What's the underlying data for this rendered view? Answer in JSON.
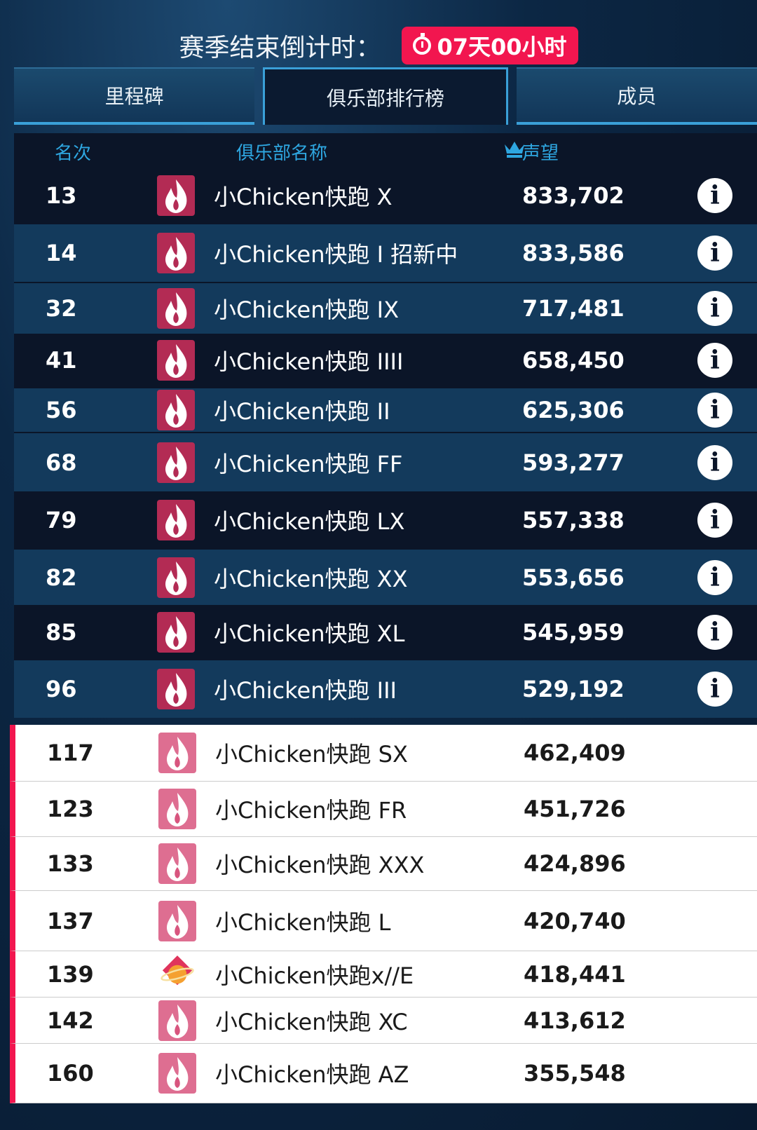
{
  "header": {
    "countdown_label": "赛季结束倒计时：",
    "countdown_value": "07天00小时",
    "timer_icon": "stopwatch-icon",
    "accent": "#f2164f"
  },
  "tabs": [
    {
      "label": "里程碑",
      "active": false
    },
    {
      "label": "俱乐部排行榜",
      "active": true
    },
    {
      "label": "成员",
      "active": false
    }
  ],
  "table": {
    "columns": {
      "rank": "名次",
      "name": "俱乐部名称",
      "score": "声望",
      "score_icon": "crown-icon"
    },
    "rows": [
      {
        "rank": "13",
        "name": "小Chicken快跑 X",
        "score": "833,702",
        "style": "dark",
        "logo": "flame"
      },
      {
        "rank": "14",
        "name": "小Chicken快跑 I 招新中",
        "score": "833,586",
        "style": "blue",
        "logo": "flame"
      },
      {
        "rank": "32",
        "name": "小Chicken快跑 IX",
        "score": "717,481",
        "style": "blue",
        "logo": "flame"
      },
      {
        "rank": "41",
        "name": "小Chicken快跑 IIII",
        "score": "658,450",
        "style": "dark",
        "logo": "flame"
      },
      {
        "rank": "56",
        "name": "小Chicken快跑 II",
        "score": "625,306",
        "style": "blue",
        "logo": "flame"
      },
      {
        "rank": "68",
        "name": "小Chicken快跑 FF",
        "score": "593,277",
        "style": "blue",
        "logo": "flame"
      },
      {
        "rank": "79",
        "name": "小Chicken快跑 LX",
        "score": "557,338",
        "style": "dark",
        "logo": "flame"
      },
      {
        "rank": "82",
        "name": "小Chicken快跑 XX",
        "score": "553,656",
        "style": "blue",
        "logo": "flame"
      },
      {
        "rank": "85",
        "name": "小Chicken快跑 XL",
        "score": "545,959",
        "style": "dark",
        "logo": "flame"
      },
      {
        "rank": "96",
        "name": "小Chicken快跑 III",
        "score": "529,192",
        "style": "blue",
        "logo": "flame"
      },
      {
        "rank": "117",
        "name": "小Chicken快跑 SX",
        "score": "462,409",
        "style": "white",
        "logo": "flame"
      },
      {
        "rank": "123",
        "name": "小Chicken快跑 FR",
        "score": "451,726",
        "style": "white",
        "logo": "flame"
      },
      {
        "rank": "133",
        "name": "小Chicken快跑 XXX",
        "score": "424,896",
        "style": "white",
        "logo": "flame"
      },
      {
        "rank": "137",
        "name": "小Chicken快跑 L",
        "score": "420,740",
        "style": "white",
        "logo": "flame"
      },
      {
        "rank": "139",
        "name": "小Chicken快跑x//E",
        "score": "418,441",
        "style": "white",
        "logo": "planet"
      },
      {
        "rank": "142",
        "name": "小Chicken快跑 XC",
        "score": "413,612",
        "style": "white",
        "logo": "flame"
      },
      {
        "rank": "160",
        "name": "小Chicken快跑 AZ",
        "score": "355,548",
        "style": "white",
        "logo": "flame"
      }
    ]
  }
}
